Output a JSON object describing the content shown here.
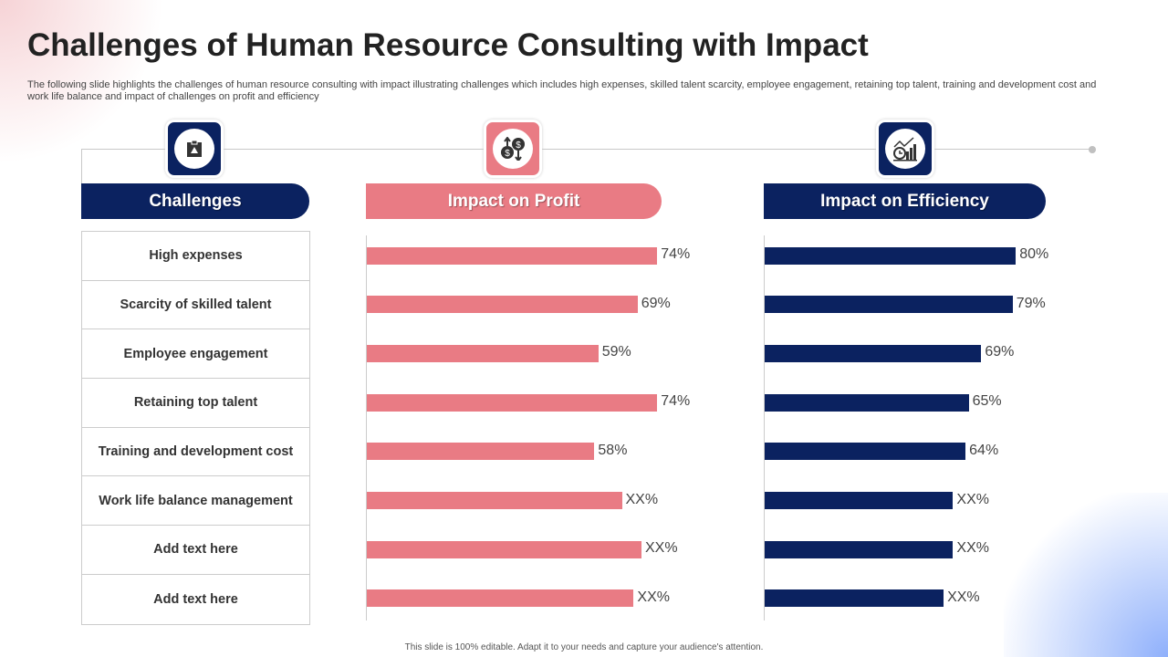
{
  "title": "Challenges of Human Resource Consulting with Impact",
  "subtitle": "The following slide highlights the challenges of human resource consulting with impact illustrating challenges which includes high expenses, skilled talent scarcity, employee engagement, retaining top talent, training and development cost and work life balance and impact of challenges on profit and efficiency",
  "colors": {
    "navy": "#0b2260",
    "pink": "#e97b84"
  },
  "icons": {
    "challenges": "clipboard-warning-icon",
    "profit": "dollar-up-down-icon",
    "efficiency": "clock-chart-growth-icon"
  },
  "headers": {
    "challenges": "Challenges",
    "profit": "Impact on Profit",
    "efficiency": "Impact on Efficiency"
  },
  "challenges": [
    "High expenses",
    "Scarcity of skilled talent",
    "Employee engagement",
    "Retaining top talent",
    "Training and development cost",
    "Work life balance management",
    "Add  text here",
    "Add  text here"
  ],
  "chart_data": [
    {
      "type": "bar",
      "orientation": "horizontal",
      "title": "Impact on Profit",
      "categories": [
        "High expenses",
        "Scarcity of skilled talent",
        "Employee engagement",
        "Retaining top talent",
        "Training and development cost",
        "Work life balance management",
        "Add  text here",
        "Add  text here"
      ],
      "values": [
        74,
        69,
        59,
        74,
        58,
        65,
        70,
        68
      ],
      "labels": [
        "74%",
        "69%",
        "59%",
        "74%",
        "58%",
        "XX%",
        "XX%",
        "XX%"
      ],
      "xlim": [
        0,
        100
      ],
      "color": "#e97b84"
    },
    {
      "type": "bar",
      "orientation": "horizontal",
      "title": "Impact on Efficiency",
      "categories": [
        "High expenses",
        "Scarcity of skilled talent",
        "Employee engagement",
        "Retaining top talent",
        "Training and development cost",
        "Work life balance management",
        "Add  text here",
        "Add  text here"
      ],
      "values": [
        80,
        79,
        69,
        65,
        64,
        60,
        60,
        57
      ],
      "labels": [
        "80%",
        "79%",
        "69%",
        "65%",
        "64%",
        "XX%",
        "XX%",
        "XX%"
      ],
      "xlim": [
        0,
        100
      ],
      "color": "#0b2260"
    }
  ],
  "footer": "This slide is 100% editable. Adapt it to your needs and capture your audience's attention."
}
